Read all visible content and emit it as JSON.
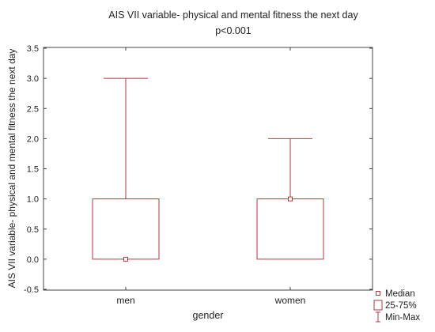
{
  "chart_data": {
    "type": "box",
    "title": "AIS VII variable- physical and mental fitness the next day",
    "subtitle": "p<0.001",
    "xlabel": "gender",
    "ylabel": "AIS VII variable- physical and mental fitness the next day",
    "ylim": [
      -0.5,
      3.5
    ],
    "yticks": [
      "-0.5",
      "0.0",
      "0.5",
      "1.0",
      "1.5",
      "2.0",
      "2.5",
      "3.0",
      "3.5"
    ],
    "categories": [
      "men",
      "women"
    ],
    "boxes": [
      {
        "category": "men",
        "median": 0,
        "q1": 0,
        "q3": 1,
        "min": 0,
        "max": 3
      },
      {
        "category": "women",
        "median": 1,
        "q1": 0,
        "q3": 1,
        "min": 0,
        "max": 2
      }
    ],
    "legend": {
      "position": "bottom-right",
      "items": [
        "Median",
        "25-75%",
        "Min-Max"
      ]
    },
    "colors": {
      "series": "#b5363c",
      "axis": "#444444"
    }
  }
}
